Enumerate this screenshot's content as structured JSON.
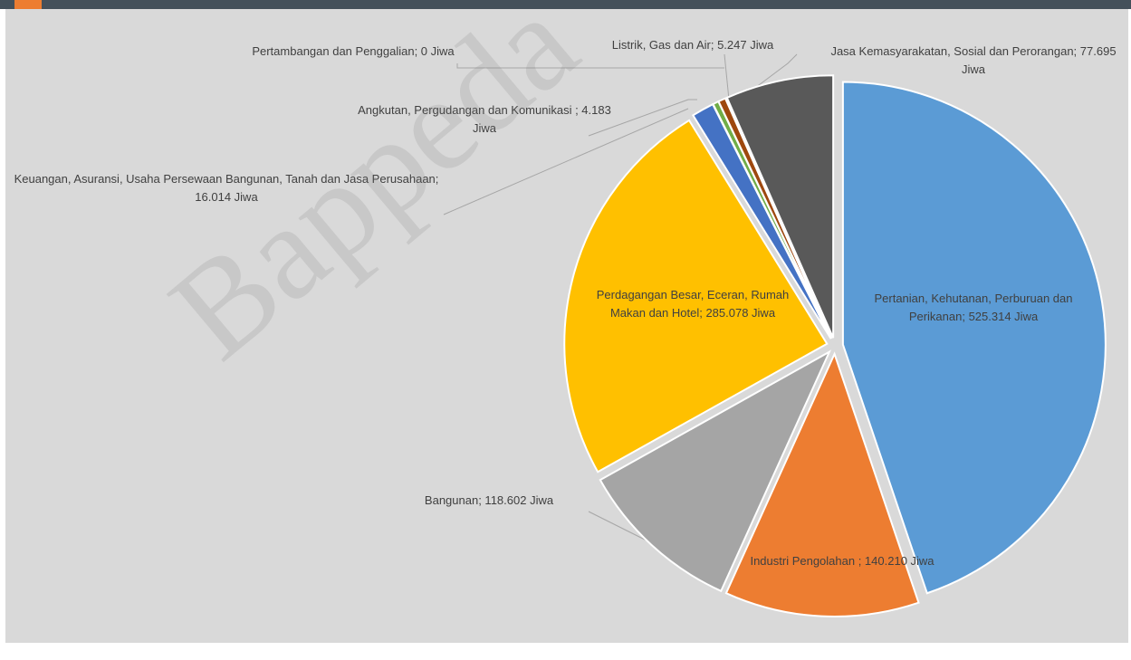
{
  "chart_data": {
    "type": "pie",
    "value_labels": [
      "Pertanian, Kehutanan, Perburuan dan Perikanan; 525.314 Jiwa",
      "Industri Pengolahan ; 140.210 Jiwa",
      "Bangunan; 118.602 Jiwa",
      "Perdagangan Besar, Eceran, Rumah Makan dan Hotel; 285.078 Jiwa",
      "Keuangan, Asuransi, Usaha Persewaan Bangunan, Tanah dan Jasa Perusahaan; 16.014 Jiwa",
      "Angkutan, Pergudangan dan Komunikasi ; 4.183 Jiwa",
      "Pertambangan dan Penggalian; 0 Jiwa",
      "Listrik, Gas dan Air; 5.247 Jiwa",
      "Jasa Kemasyarakatan, Sosial dan Perorangan; 77.695 Jiwa"
    ],
    "values": [
      525314,
      140210,
      118602,
      285078,
      16014,
      4183,
      0,
      5247,
      77695
    ],
    "colors": [
      "#5b9bd5",
      "#ed7d31",
      "#a5a5a5",
      "#ffc000",
      "#4472c4",
      "#70ad47",
      "#255e91",
      "#9e480e",
      "#595959"
    ],
    "watermark": "Bappeda"
  }
}
